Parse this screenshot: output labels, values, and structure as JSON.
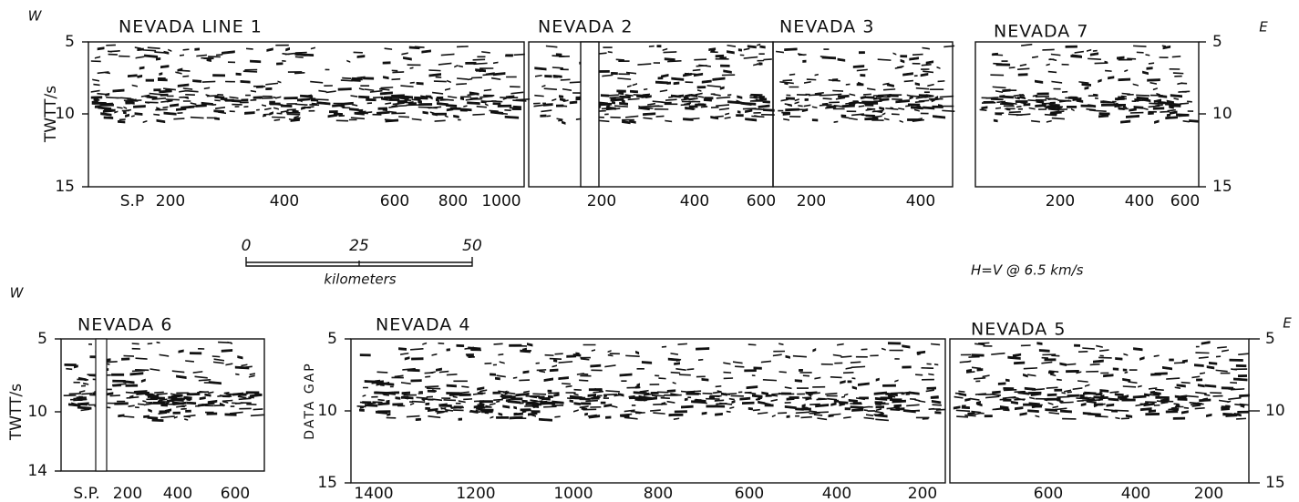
{
  "top": {
    "west": "W",
    "east": "E",
    "y_label": "TWTT/s",
    "sp": "S.P",
    "y_ticks": [
      5,
      10,
      15
    ],
    "y_ticks_right": [
      5,
      10,
      15
    ],
    "panels": [
      {
        "title": "NEVADA LINE 1",
        "x_ticks": [
          200,
          400,
          600,
          800,
          1000
        ]
      },
      {
        "title": "NEVADA 2",
        "x_ticks": [
          200,
          400,
          600
        ]
      },
      {
        "title": "NEVADA 3",
        "x_ticks": [
          200,
          400
        ]
      },
      {
        "title": "NEVADA 7",
        "x_ticks": [
          200,
          400,
          600
        ]
      }
    ]
  },
  "scale": {
    "ticks": [
      0,
      25,
      50
    ],
    "unit": "kilometers"
  },
  "note": "H=V @ 6.5 km/s",
  "bottom": {
    "west": "W",
    "east": "E",
    "y_label": "TWTT/s",
    "gap_label": "DATA GAP",
    "sp": "S.P.",
    "y_ticks_left": [
      5,
      10,
      14
    ],
    "y_ticks_mid": [
      5,
      10,
      15
    ],
    "y_ticks_right": [
      5,
      10,
      15
    ],
    "panels": [
      {
        "title": "NEVADA 6",
        "x_ticks": [
          200,
          400,
          600
        ]
      },
      {
        "title": "NEVADA 4",
        "x_ticks": [
          1400,
          1200,
          1000,
          800,
          600,
          400,
          200
        ]
      },
      {
        "title": "NEVADA 5",
        "x_ticks": [
          600,
          400,
          200
        ]
      }
    ]
  }
}
